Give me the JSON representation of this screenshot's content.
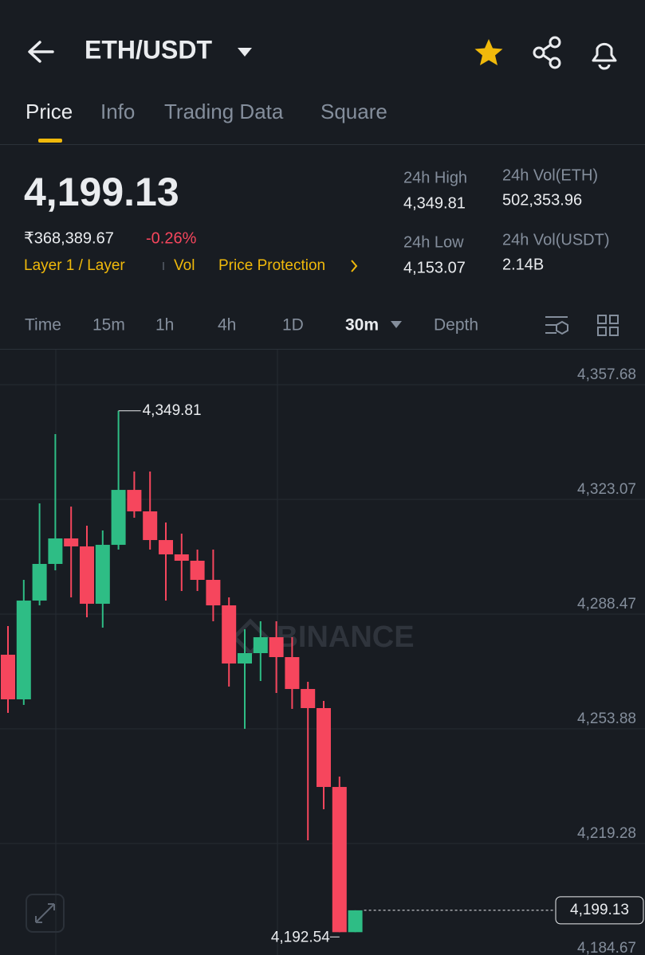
{
  "header": {
    "pair": "ETH/USDT"
  },
  "tabs": [
    "Price",
    "Info",
    "Trading Data",
    "Square"
  ],
  "ticker": {
    "price": "4,199.13",
    "fiat_price": "₹368,389.67",
    "change": "-0.26%",
    "tags": [
      "Layer 1 / Layer",
      "Vol",
      "Price Protection"
    ],
    "stats": [
      {
        "label": "24h High",
        "value": "4,349.81"
      },
      {
        "label": "24h Low",
        "value": "4,153.07"
      },
      {
        "label": "24h Vol(ETH)",
        "value": "502,353.96"
      },
      {
        "label": "24h Vol(USDT)",
        "value": "2.14B"
      }
    ]
  },
  "intervals": [
    "Time",
    "15m",
    "1h",
    "4h",
    "1D",
    "30m",
    "Depth"
  ],
  "chart_data": {
    "type": "candlestick",
    "watermark": "BINANCE",
    "open": [
      4276.23,
      4262.77,
      4292.56,
      4303.62,
      4311.31,
      4308.9,
      4291.6,
      4309.38,
      4325.95,
      4319.47,
      4310.82,
      4306.5,
      4304.58,
      4298.81,
      4291.12,
      4273.58,
      4276.71,
      4281.51,
      4275.51,
      4265.89,
      4260.13,
      4236.34,
      4192.54
    ],
    "high": [
      4284.88,
      4298.81,
      4321.88,
      4342.78,
      4320.92,
      4315.15,
      4313.71,
      4349.81,
      4331.49,
      4331.49,
      4316.11,
      4312.75,
      4307.94,
      4307.94,
      4293.53,
      4283.91,
      4286.32,
      4286.32,
      4281.51,
      4268.06,
      4262.29,
      4239.46,
      4199.13
    ],
    "low": [
      4258.69,
      4261.09,
      4291.12,
      4301.69,
      4293.53,
      4287.52,
      4284.39,
      4307.94,
      4317.55,
      4307.94,
      4292.56,
      4295.45,
      4295.45,
      4286.32,
      4266.61,
      4253.88,
      4268.3,
      4264.69,
      4259.89,
      4220.24,
      4229.61,
      4192.54,
      4192.54
    ],
    "close": [
      4262.77,
      4292.56,
      4303.62,
      4311.31,
      4308.9,
      4291.6,
      4309.38,
      4325.95,
      4319.47,
      4310.82,
      4306.5,
      4304.58,
      4298.81,
      4291.12,
      4273.58,
      4276.71,
      4281.51,
      4275.51,
      4265.89,
      4260.13,
      4236.34,
      4192.54,
      4199.13
    ],
    "ylim": [
      4185.65,
      4368.01
    ],
    "yticks": [
      {
        "value": 4357.68,
        "label": "4,357.68"
      },
      {
        "value": 4323.07,
        "label": "4,323.07"
      },
      {
        "value": 4288.47,
        "label": "4,288.47"
      },
      {
        "value": 4253.88,
        "label": "4,253.88"
      },
      {
        "value": 4219.28,
        "label": "4,219.28"
      },
      {
        "value": 4184.67,
        "label": "4,184.67"
      }
    ],
    "grid": true,
    "colors": {
      "up": "#2ebd85",
      "down": "#f6465d"
    },
    "annotations": {
      "high": {
        "value": 4349.81,
        "label": "4,349.81"
      },
      "low": {
        "value": 4192.54,
        "label": "4,192.54"
      },
      "last": {
        "value": 4199.13,
        "label": "4,199.13"
      }
    }
  }
}
